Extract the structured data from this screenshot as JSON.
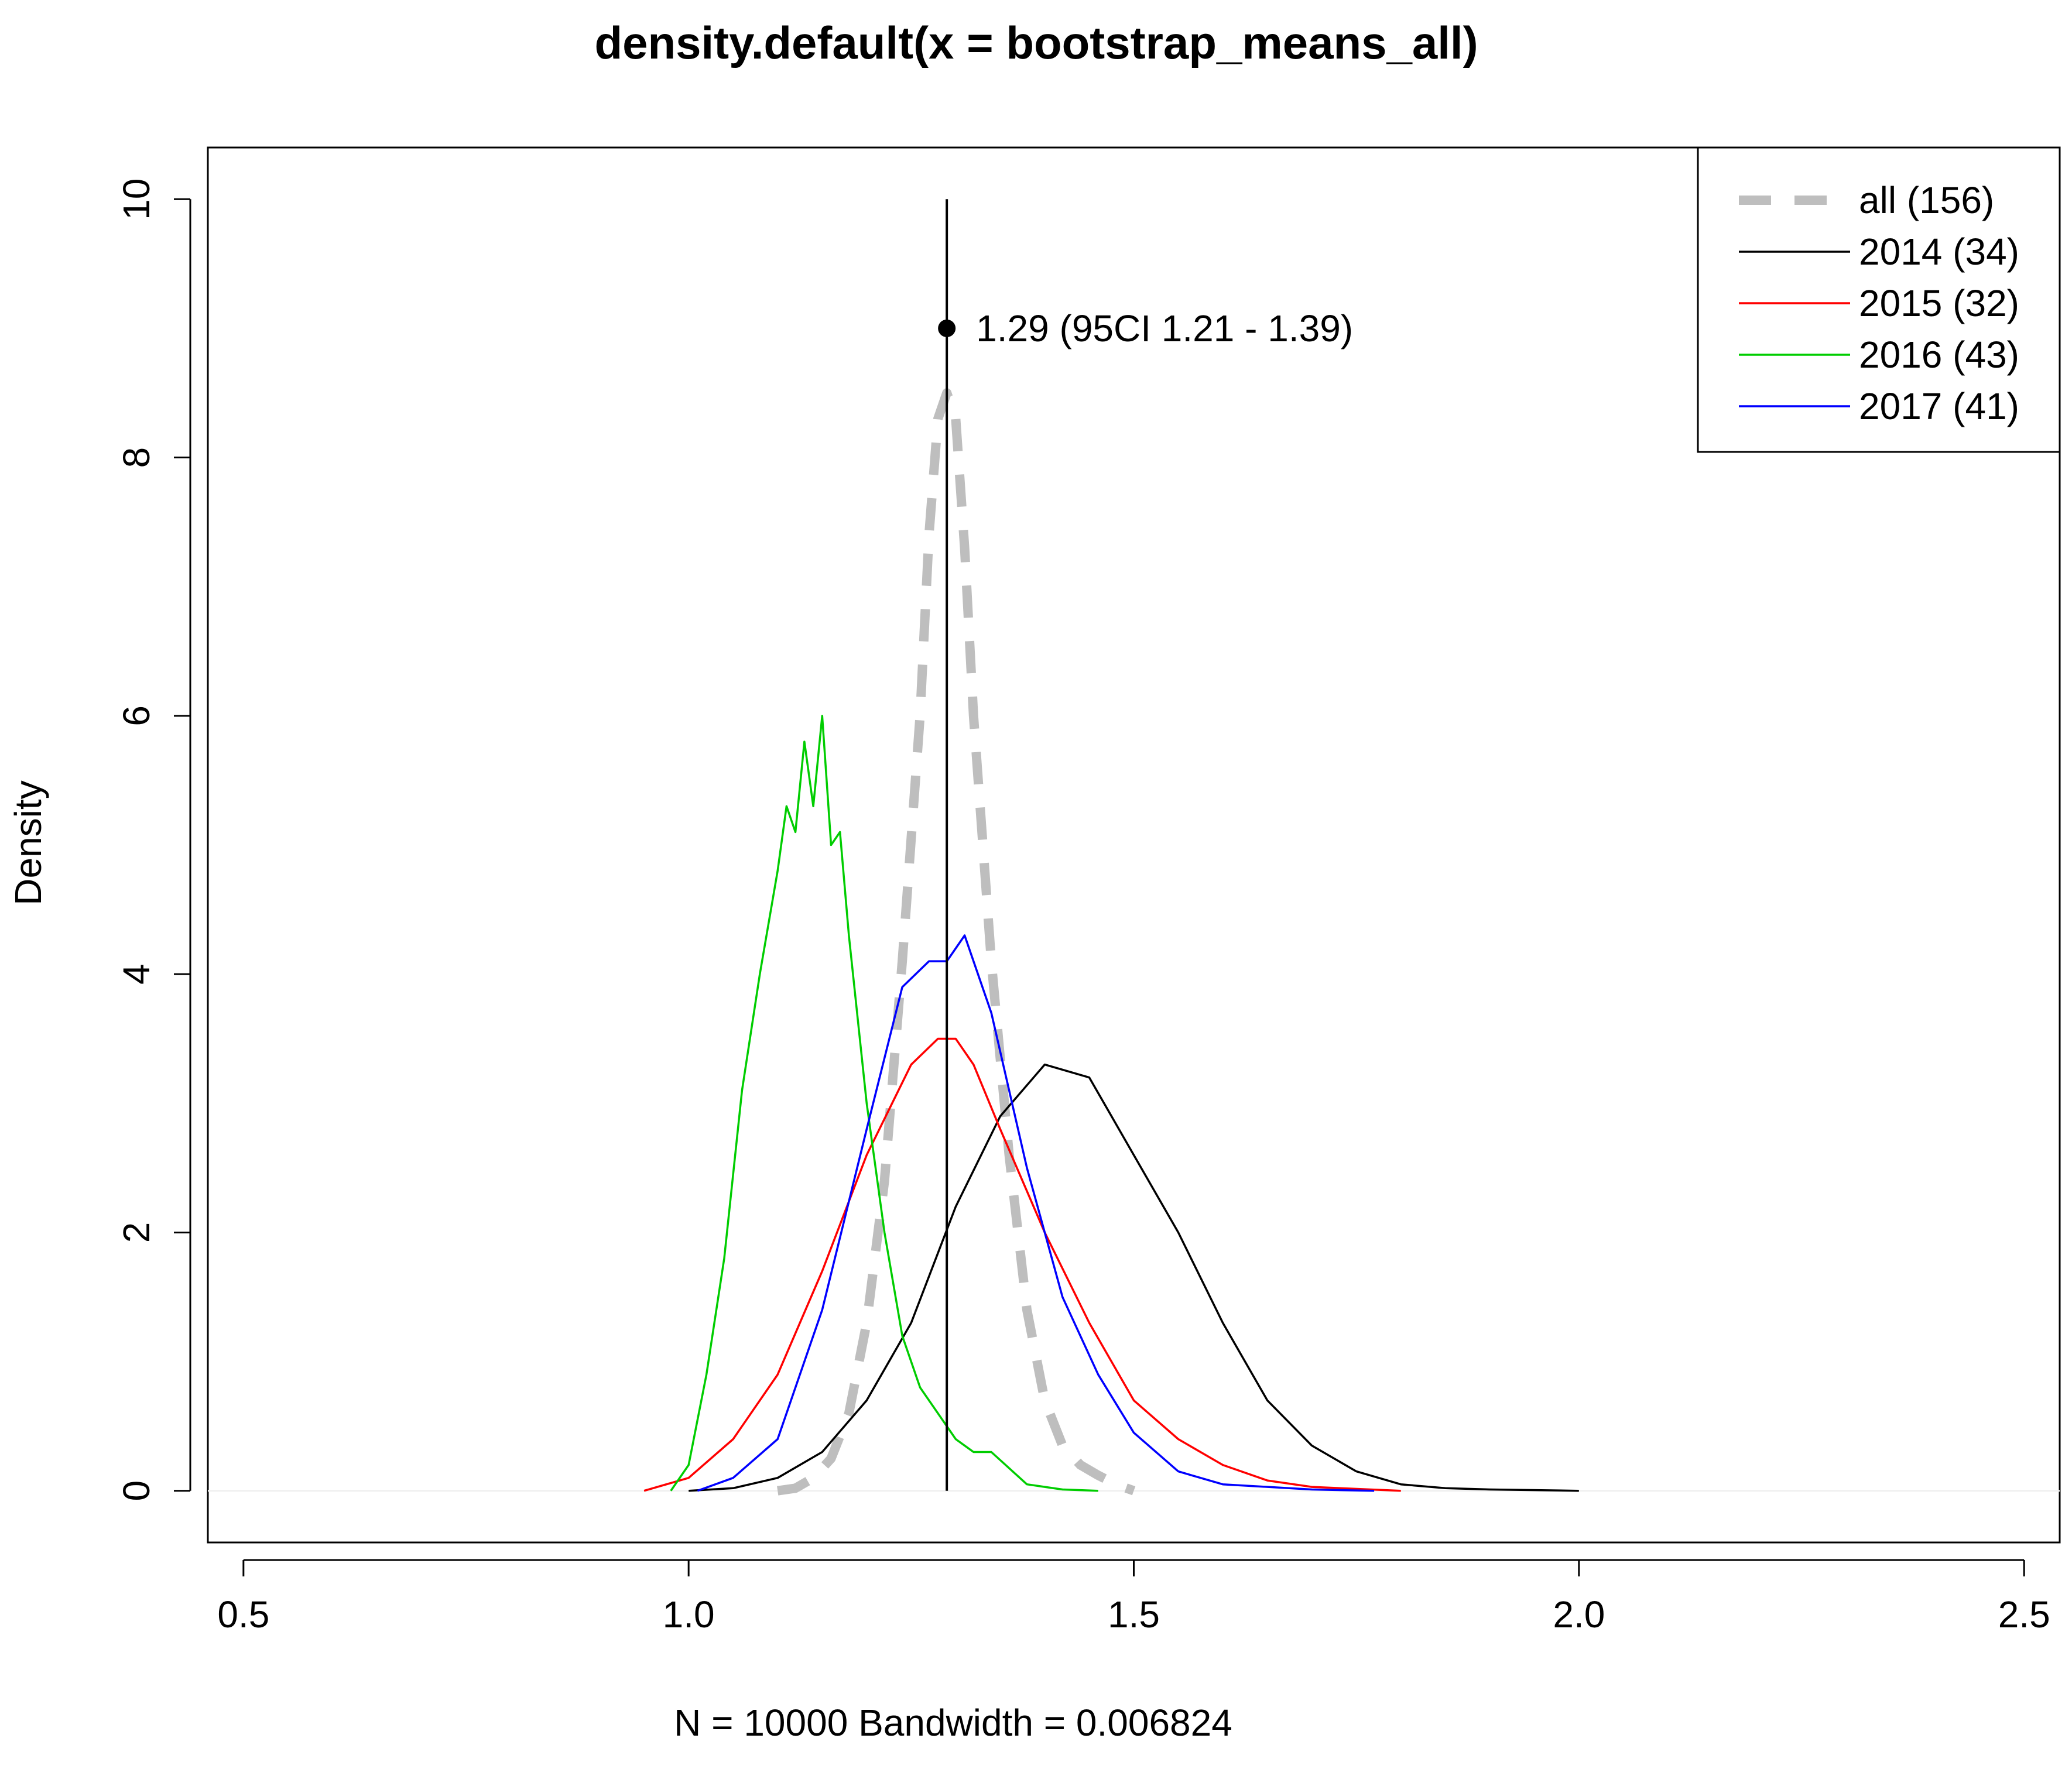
{
  "chart_data": {
    "type": "line",
    "title": "density.default(x = bootstrap_means_all)",
    "xlabel": "N = 10000   Bandwidth = 0.006824",
    "ylabel": "Density",
    "xlim": [
      0.46,
      2.54
    ],
    "ylim": [
      -0.4,
      10.4
    ],
    "x_ticks": [
      "0.5",
      "1.0",
      "1.5",
      "2.0",
      "2.5"
    ],
    "y_ticks": [
      "0",
      "2",
      "4",
      "6",
      "8",
      "10"
    ],
    "legend_position": "top-right",
    "series": [
      {
        "name": "all (156)",
        "color": "#bebebe",
        "style": "dashed",
        "x": [
          1.1,
          1.12,
          1.14,
          1.16,
          1.18,
          1.2,
          1.22,
          1.24,
          1.26,
          1.27,
          1.28,
          1.29,
          1.3,
          1.31,
          1.32,
          1.34,
          1.36,
          1.38,
          1.4,
          1.42,
          1.44,
          1.46,
          1.48,
          1.5
        ],
        "y": [
          0.0,
          0.02,
          0.1,
          0.25,
          0.6,
          1.3,
          2.4,
          4.1,
          6.0,
          7.4,
          8.3,
          8.5,
          8.3,
          7.3,
          6.0,
          4.1,
          2.6,
          1.4,
          0.7,
          0.35,
          0.2,
          0.12,
          0.05,
          0.0
        ]
      },
      {
        "name": "2014 (34)",
        "color": "#000000",
        "style": "solid",
        "x": [
          1.0,
          1.05,
          1.1,
          1.15,
          1.2,
          1.25,
          1.3,
          1.35,
          1.4,
          1.45,
          1.5,
          1.55,
          1.6,
          1.65,
          1.7,
          1.75,
          1.8,
          1.85,
          1.9,
          2.0
        ],
        "y": [
          0.0,
          0.02,
          0.1,
          0.3,
          0.7,
          1.3,
          2.2,
          2.9,
          3.3,
          3.2,
          2.6,
          2.0,
          1.3,
          0.7,
          0.35,
          0.15,
          0.05,
          0.02,
          0.01,
          0.0
        ]
      },
      {
        "name": "2015 (32)",
        "color": "#ff0000",
        "style": "solid",
        "x": [
          0.95,
          1.0,
          1.05,
          1.1,
          1.15,
          1.2,
          1.25,
          1.28,
          1.3,
          1.32,
          1.35,
          1.4,
          1.45,
          1.5,
          1.55,
          1.6,
          1.65,
          1.7,
          1.8
        ],
        "y": [
          0.0,
          0.1,
          0.4,
          0.9,
          1.7,
          2.6,
          3.3,
          3.5,
          3.5,
          3.3,
          2.8,
          2.0,
          1.3,
          0.7,
          0.4,
          0.2,
          0.08,
          0.03,
          0.0
        ]
      },
      {
        "name": "2016 (43)",
        "color": "#00cd00",
        "style": "solid",
        "x": [
          0.98,
          1.0,
          1.02,
          1.04,
          1.06,
          1.08,
          1.1,
          1.11,
          1.12,
          1.13,
          1.14,
          1.15,
          1.16,
          1.17,
          1.18,
          1.2,
          1.22,
          1.24,
          1.26,
          1.28,
          1.3,
          1.32,
          1.34,
          1.38,
          1.42,
          1.46
        ],
        "y": [
          0.0,
          0.2,
          0.9,
          1.8,
          3.1,
          4.0,
          4.8,
          5.3,
          5.1,
          5.8,
          5.3,
          6.0,
          5.0,
          5.1,
          4.3,
          3.0,
          2.0,
          1.2,
          0.8,
          0.6,
          0.4,
          0.3,
          0.3,
          0.05,
          0.01,
          0.0
        ]
      },
      {
        "name": "2017 (41)",
        "color": "#0000ff",
        "style": "solid",
        "x": [
          1.01,
          1.05,
          1.1,
          1.15,
          1.2,
          1.24,
          1.27,
          1.29,
          1.31,
          1.34,
          1.38,
          1.42,
          1.46,
          1.5,
          1.55,
          1.6,
          1.7,
          1.77
        ],
        "y": [
          0.0,
          0.1,
          0.4,
          1.4,
          2.8,
          3.9,
          4.1,
          4.1,
          4.3,
          3.7,
          2.5,
          1.5,
          0.9,
          0.45,
          0.15,
          0.05,
          0.01,
          0.0
        ]
      }
    ],
    "vline_x": 1.29,
    "point": {
      "x": 1.29,
      "y": 9.0
    },
    "annotation": "1.29 (95CI 1.21 - 1.39)"
  }
}
